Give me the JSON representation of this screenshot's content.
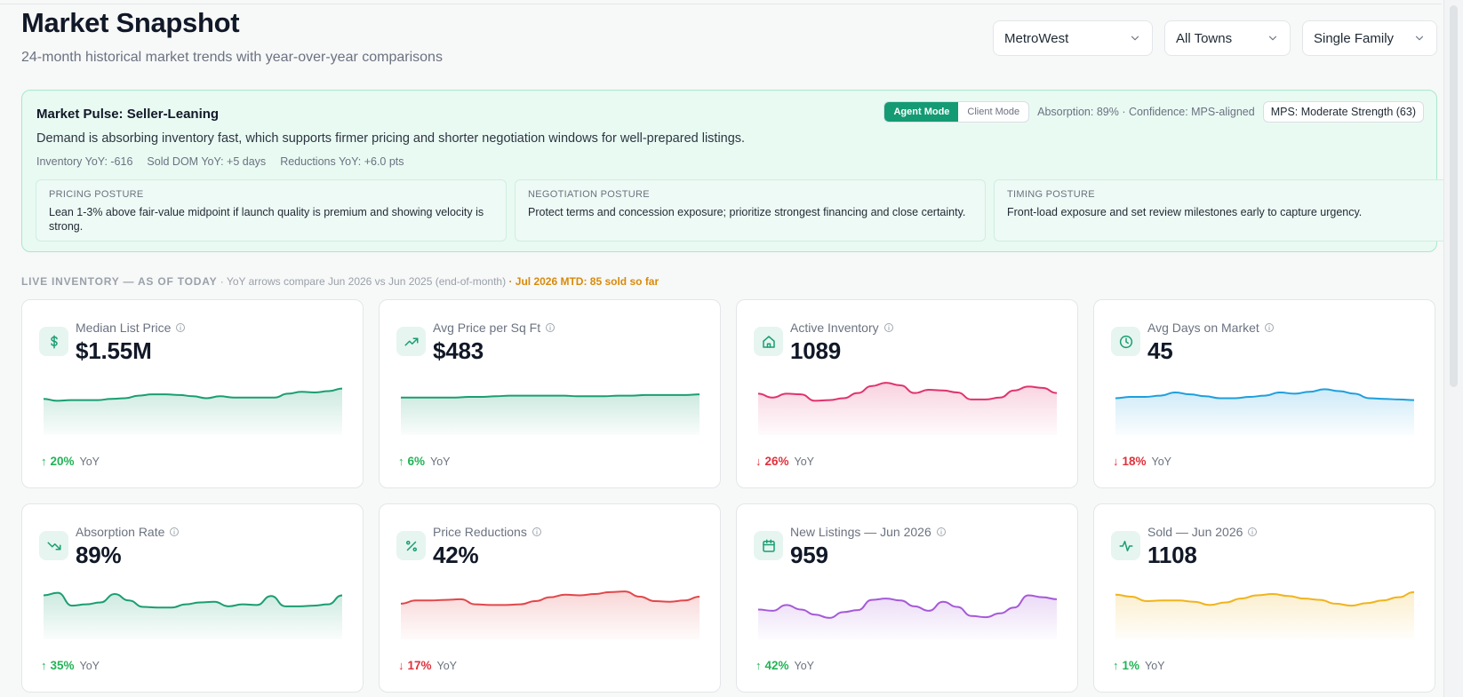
{
  "header": {
    "title": "Market Snapshot",
    "subtitle": "24-month historical market trends with year-over-year comparisons"
  },
  "filters": [
    {
      "name": "region",
      "value": "MetroWest",
      "width": 180
    },
    {
      "name": "town",
      "value": "All Towns",
      "width": 142
    },
    {
      "name": "property-type",
      "value": "Single Family",
      "width": 152
    }
  ],
  "pulse": {
    "title": "Market Pulse: Seller-Leaning",
    "description": "Demand is absorbing inventory fast, which supports firmer pricing and shorter negotiation windows for well-prepared listings.",
    "stats": [
      "Inventory YoY: -616",
      "Sold DOM YoY: +5 days",
      "Reductions YoY: +6.0 pts"
    ],
    "modes": {
      "agent": "Agent Mode",
      "client": "Client Mode",
      "active": "agent"
    },
    "meta": "Absorption: 89% · Confidence: MPS-aligned",
    "mps": "MPS: Moderate Strength (63)",
    "postures": [
      {
        "label": "PRICING POSTURE",
        "text": "Lean 1-3% above fair-value midpoint if launch quality is premium and showing velocity is strong."
      },
      {
        "label": "NEGOTIATION POSTURE",
        "text": "Protect terms and concession exposure; prioritize strongest financing and close certainty."
      },
      {
        "label": "TIMING POSTURE",
        "text": "Front-load exposure and set review milestones early to capture urgency."
      }
    ]
  },
  "live": {
    "heading": "LIVE INVENTORY — AS OF TODAY",
    "note": "· YoY arrows compare Jun 2026 vs Jun 2025 (end-of-month)",
    "mtd": "· Jul 2026 MTD: 85 sold so far"
  },
  "yoy_label": "YoY",
  "cards": [
    {
      "label": "Median List Price",
      "value": "$1.55M",
      "icon": "dollar-icon",
      "yoy": "20%",
      "dir": "up",
      "color": "#1a9e72",
      "series": [
        48,
        45,
        46,
        46,
        46,
        48,
        49,
        53,
        55,
        55,
        54,
        52,
        49,
        52,
        50,
        50,
        50,
        50,
        56,
        59,
        58,
        60,
        64
      ]
    },
    {
      "label": "Avg Price per Sq Ft",
      "value": "$483",
      "icon": "trending-up-icon",
      "yoy": "6%",
      "dir": "up",
      "color": "#1a9e72",
      "series": [
        50,
        50,
        50,
        50,
        50,
        51,
        51,
        52,
        53,
        53,
        53,
        53,
        53,
        52,
        52,
        52,
        53,
        53,
        54,
        54,
        54,
        54,
        55
      ]
    },
    {
      "label": "Active Inventory",
      "value": "1089",
      "icon": "home-icon",
      "yoy": "26%",
      "dir": "down",
      "color": "#e0336e",
      "series": [
        56,
        50,
        56,
        55,
        45,
        46,
        49,
        57,
        68,
        73,
        69,
        57,
        62,
        61,
        58,
        47,
        47,
        50,
        61,
        67,
        65,
        57
      ]
    },
    {
      "label": "Avg Days on Market",
      "value": "45",
      "icon": "clock-icon",
      "yoy": "18%",
      "dir": "down",
      "color": "#1e9fdd",
      "series": [
        49,
        51,
        51,
        53,
        58,
        55,
        52,
        49,
        49,
        51,
        53,
        58,
        56,
        59,
        63,
        60,
        56,
        49,
        48,
        47,
        46
      ]
    },
    {
      "label": "Absorption Rate",
      "value": "89%",
      "icon": "trending-down-icon",
      "yoy": "35%",
      "dir": "up",
      "color": "#1a9e72",
      "series": [
        60,
        64,
        44,
        46,
        49,
        62,
        52,
        42,
        41,
        41,
        46,
        49,
        50,
        43,
        46,
        45,
        59,
        43,
        43,
        44,
        46,
        60
      ]
    },
    {
      "label": "Price Reductions",
      "value": "42%",
      "icon": "percent-icon",
      "yoy": "17%",
      "dir": "down",
      "color": "#e2474a",
      "series": [
        47,
        52,
        52,
        53,
        54,
        46,
        45,
        45,
        46,
        51,
        57,
        61,
        60,
        62,
        65,
        66,
        58,
        51,
        50,
        52,
        58
      ]
    },
    {
      "label": "New Listings — Jun 2026",
      "value": "959",
      "icon": "calendar-icon",
      "yoy": "42%",
      "dir": "up",
      "color": "#a45ad8",
      "series": [
        38,
        36,
        45,
        38,
        30,
        25,
        34,
        37,
        53,
        55,
        52,
        43,
        36,
        50,
        42,
        28,
        26,
        32,
        41,
        60,
        57,
        54
      ]
    },
    {
      "label": "Sold — Jun 2026",
      "value": "1108",
      "icon": "activity-icon",
      "yoy": "1%",
      "dir": "up",
      "color": "#f0b41d",
      "series": [
        61,
        58,
        51,
        52,
        52,
        50,
        45,
        49,
        55,
        60,
        62,
        59,
        55,
        53,
        47,
        44,
        48,
        52,
        57,
        65
      ]
    }
  ]
}
